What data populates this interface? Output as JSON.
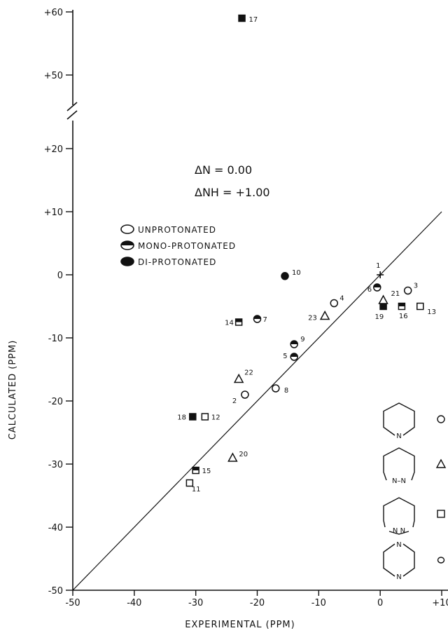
{
  "chart_data": {
    "type": "scatter",
    "xlabel": "EXPERIMENTAL (PPM)",
    "ylabel": "CALCULATED (PPM)",
    "xlim": [
      -50,
      10
    ],
    "ylim": [
      -50,
      60
    ],
    "y_axis_break": [
      20,
      50
    ],
    "x_ticks": [
      "-50",
      "-40",
      "-30",
      "-20",
      "-10",
      "0",
      "+10"
    ],
    "y_ticks_lower": [
      "-50",
      "-40",
      "-30",
      "-20",
      "-10",
      "0",
      "+10",
      "+20"
    ],
    "y_ticks_upper": [
      "+50",
      "+60"
    ],
    "reference_line": "y = x",
    "annotation": {
      "delta_n": "ΔN = 0.00",
      "delta_nh": "ΔNH = +1.00"
    },
    "legend": {
      "items": [
        {
          "label": "UNPROTONATED",
          "fill": "none"
        },
        {
          "label": "MONO-PROTONATED",
          "fill": "half"
        },
        {
          "label": "DI-PROTONATED",
          "fill": "full"
        }
      ]
    },
    "ring_key": [
      {
        "name": "piperidine",
        "marker": "circle",
        "n_label": "N"
      },
      {
        "name": "pyridazine",
        "marker": "triangle",
        "n_label": "N–N"
      },
      {
        "name": "pyrimidine",
        "marker": "square",
        "n_label": "N N"
      },
      {
        "name": "pyrazine",
        "marker": "circle-small",
        "n_label": "N"
      }
    ],
    "points": [
      {
        "id": "1",
        "x": 0,
        "y": 0,
        "marker": "cross",
        "fill": "none"
      },
      {
        "id": "2",
        "x": -22,
        "y": -19,
        "marker": "circle",
        "fill": "none"
      },
      {
        "id": "3",
        "x": 4.5,
        "y": -2.5,
        "marker": "circle",
        "fill": "none"
      },
      {
        "id": "4",
        "x": -7.5,
        "y": -4.5,
        "marker": "circle",
        "fill": "none"
      },
      {
        "id": "5",
        "x": -14,
        "y": -13,
        "marker": "circle",
        "fill": "half"
      },
      {
        "id": "6",
        "x": -0.5,
        "y": -2,
        "marker": "circle",
        "fill": "half"
      },
      {
        "id": "7",
        "x": -20,
        "y": -7,
        "marker": "circle",
        "fill": "half"
      },
      {
        "id": "8",
        "x": -17,
        "y": -18,
        "marker": "circle",
        "fill": "none"
      },
      {
        "id": "9",
        "x": -14,
        "y": -11,
        "marker": "circle",
        "fill": "half"
      },
      {
        "id": "10",
        "x": -15.5,
        "y": -0.2,
        "marker": "circle",
        "fill": "full"
      },
      {
        "id": "11",
        "x": -31,
        "y": -33,
        "marker": "square",
        "fill": "none"
      },
      {
        "id": "12",
        "x": -28.5,
        "y": -22.5,
        "marker": "square",
        "fill": "none"
      },
      {
        "id": "13",
        "x": 6.5,
        "y": -5,
        "marker": "square",
        "fill": "none"
      },
      {
        "id": "14",
        "x": -23,
        "y": -7.5,
        "marker": "square",
        "fill": "half"
      },
      {
        "id": "15",
        "x": -30,
        "y": -31,
        "marker": "square",
        "fill": "half"
      },
      {
        "id": "16",
        "x": 3.5,
        "y": -5,
        "marker": "square",
        "fill": "half"
      },
      {
        "id": "17",
        "x": -22.5,
        "y": 59,
        "marker": "square",
        "fill": "full"
      },
      {
        "id": "18",
        "x": -30.5,
        "y": -22.5,
        "marker": "square",
        "fill": "full"
      },
      {
        "id": "19",
        "x": 0.5,
        "y": -5,
        "marker": "square",
        "fill": "full"
      },
      {
        "id": "20",
        "x": -24,
        "y": -29,
        "marker": "triangle",
        "fill": "none"
      },
      {
        "id": "21",
        "x": 0.5,
        "y": -4,
        "marker": "triangle",
        "fill": "none"
      },
      {
        "id": "22",
        "x": -23,
        "y": -16.5,
        "marker": "triangle",
        "fill": "none"
      },
      {
        "id": "23",
        "x": -9,
        "y": -6.5,
        "marker": "triangle",
        "fill": "none"
      }
    ],
    "grid": false
  }
}
